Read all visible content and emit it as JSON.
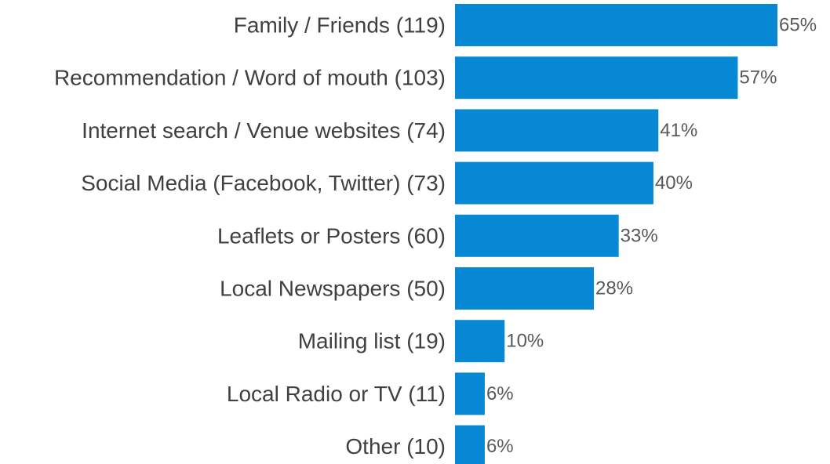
{
  "chart_data": {
    "type": "bar",
    "orientation": "horizontal",
    "categories": [
      "Family / Friends (119)",
      "Recommendation / Word of mouth (103)",
      "Internet search / Venue websites (74)",
      "Social Media (Facebook, Twitter) (73)",
      "Leaflets or Posters (60)",
      "Local Newspapers (50)",
      "Mailing list (19)",
      "Local Radio or TV (11)",
      "Other (10)"
    ],
    "values": [
      65,
      57,
      41,
      40,
      33,
      28,
      10,
      6,
      6
    ],
    "value_labels": [
      "65%",
      "57%",
      "41%",
      "40%",
      "33%",
      "28%",
      "10%",
      "6%",
      "6%"
    ],
    "title": "",
    "xlabel": "",
    "ylabel": "",
    "xlim": [
      0,
      65
    ],
    "grid": false,
    "legend": "none",
    "bar_color": "#0788d4"
  }
}
